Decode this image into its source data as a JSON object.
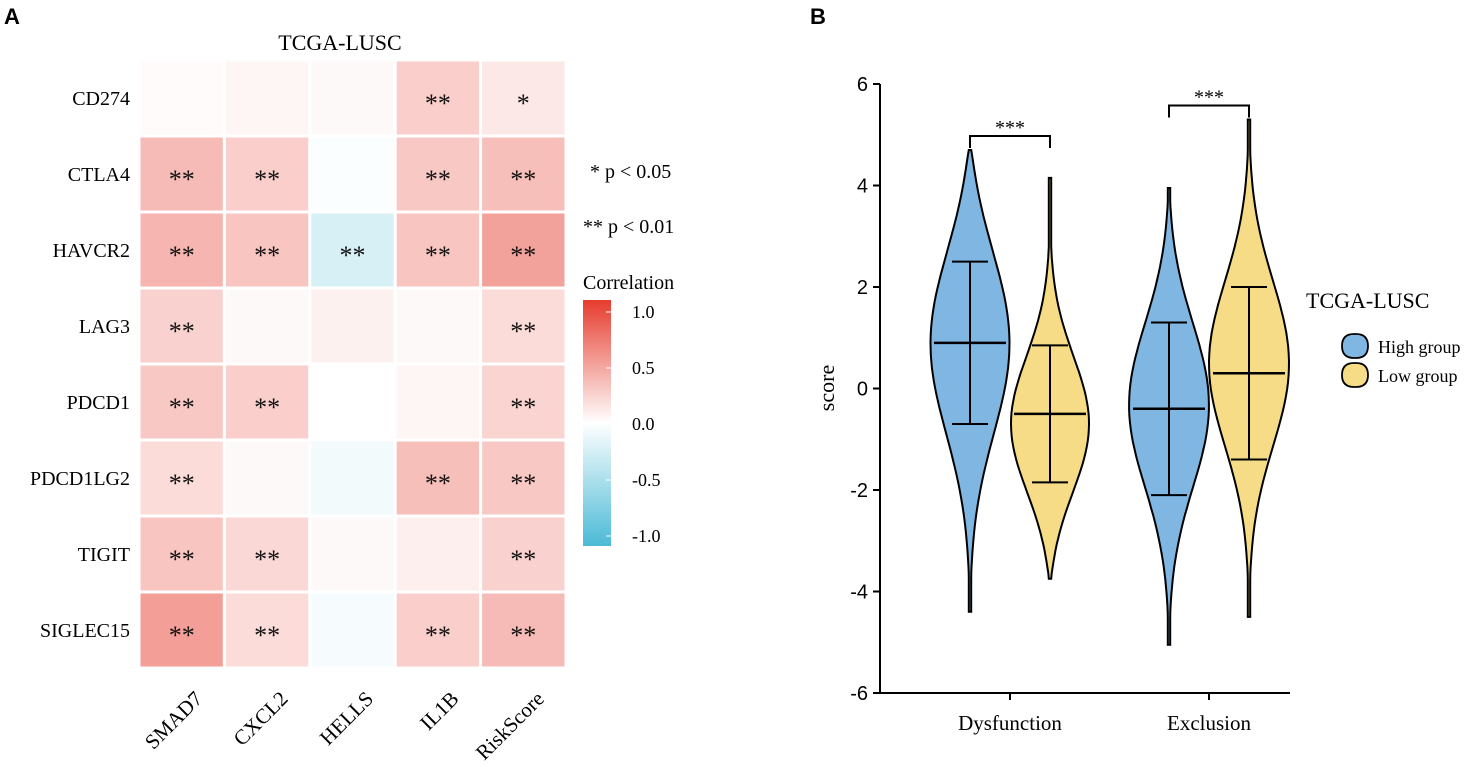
{
  "panels": {
    "a_label": "A",
    "b_label": "B"
  },
  "chart_data": [
    {
      "type": "heatmap",
      "title": "TCGA-LUSC",
      "rows": [
        "CD274",
        "CTLA4",
        "HAVCR2",
        "LAG3",
        "PDCD1",
        "PDCD1LG2",
        "TIGIT",
        "SIGLEC15"
      ],
      "columns": [
        "SMAD7",
        "CXCL2",
        "HELLS",
        "IL1B",
        "RiskScore"
      ],
      "values": [
        [
          0.02,
          0.05,
          0.03,
          0.25,
          0.12
        ],
        [
          0.35,
          0.25,
          -0.02,
          0.28,
          0.33
        ],
        [
          0.38,
          0.3,
          -0.22,
          0.3,
          0.48
        ],
        [
          0.23,
          0.03,
          0.07,
          0.03,
          0.18
        ],
        [
          0.28,
          0.25,
          0.0,
          0.05,
          0.22
        ],
        [
          0.18,
          0.03,
          -0.07,
          0.33,
          0.28
        ],
        [
          0.3,
          0.2,
          0.03,
          0.08,
          0.23
        ],
        [
          0.5,
          0.18,
          -0.05,
          0.25,
          0.35
        ]
      ],
      "significance": [
        [
          "",
          "",
          "",
          "**",
          "*"
        ],
        [
          "**",
          "**",
          "",
          "**",
          "**"
        ],
        [
          "**",
          "**",
          "**",
          "**",
          "**"
        ],
        [
          "**",
          "",
          "",
          "",
          "**"
        ],
        [
          "**",
          "**",
          "",
          "",
          "**"
        ],
        [
          "**",
          "",
          "",
          "**",
          "**"
        ],
        [
          "**",
          "**",
          "",
          "",
          "**"
        ],
        [
          "**",
          "**",
          "",
          "**",
          "**"
        ]
      ],
      "significance_legend": [
        "* p < 0.05",
        "** p < 0.01"
      ],
      "colorbar": {
        "title": "Correlation",
        "range": [
          -1.0,
          1.0
        ],
        "ticks": [
          "1.0",
          "0.5",
          "0.0",
          "-0.5",
          "-1.0"
        ],
        "colors": {
          "negative": "#4bbad6",
          "zero": "#ffffff",
          "positive": "#e63c2e"
        }
      }
    },
    {
      "type": "violin",
      "ylabel": "score",
      "ylim": [
        -6,
        6
      ],
      "yticks": [
        "6",
        "4",
        "2",
        "0",
        "-2",
        "-4",
        "-6"
      ],
      "categories": [
        "Dysfunction",
        "Exclusion"
      ],
      "legend": {
        "title": "TCGA-LUSC",
        "items": [
          {
            "name": "High group",
            "color": "#7fb6e2"
          },
          {
            "name": "Low group",
            "color": "#f6dc87"
          }
        ]
      },
      "series": [
        {
          "name": "High group",
          "category": "Dysfunction",
          "min": -4.4,
          "max": 4.7,
          "mean": 0.9,
          "sd_low": -0.7,
          "sd_high": 2.5,
          "mode": 1.0,
          "spread": 1.9
        },
        {
          "name": "Low group",
          "category": "Dysfunction",
          "min": -3.75,
          "max": 4.15,
          "mean": -0.5,
          "sd_low": -1.85,
          "sd_high": 0.85,
          "mode": -0.8,
          "spread": 1.4
        },
        {
          "name": "High group",
          "category": "Exclusion",
          "min": -5.05,
          "max": 3.95,
          "mean": -0.4,
          "sd_low": -2.1,
          "sd_high": 1.3,
          "mode": -0.3,
          "spread": 1.7
        },
        {
          "name": "Low group",
          "category": "Exclusion",
          "min": -4.5,
          "max": 5.3,
          "mean": 0.3,
          "sd_low": -1.4,
          "sd_high": 2.0,
          "mode": 0.5,
          "spread": 1.7
        }
      ],
      "annotations": [
        {
          "category": "Dysfunction",
          "label": "***"
        },
        {
          "category": "Exclusion",
          "label": "***"
        }
      ]
    }
  ]
}
